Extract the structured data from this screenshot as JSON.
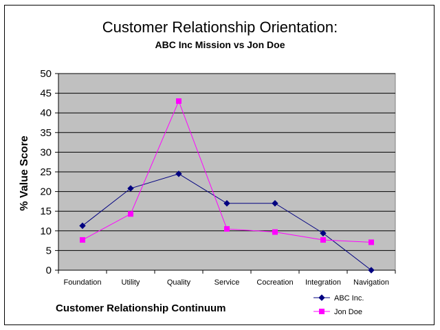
{
  "chart_data": {
    "type": "line",
    "title": "Customer Relationship Orientation:",
    "subtitle": "ABC Inc Mission vs Jon Doe",
    "xlabel": "Customer Relationship Continuum",
    "ylabel": "% Value Score",
    "categories": [
      "Foundation",
      "Utility",
      "Quality",
      "Service",
      "Cocreation",
      "Integration",
      "Navigation"
    ],
    "ylim": [
      0,
      50
    ],
    "yticks": [
      0,
      5,
      10,
      15,
      20,
      25,
      30,
      35,
      40,
      45,
      50
    ],
    "grid": true,
    "legend_position": "bottom-right",
    "series": [
      {
        "name": "ABC Inc.",
        "color": "#000080",
        "marker": "diamond",
        "values": [
          11.3,
          20.8,
          24.5,
          17,
          17,
          9.4,
          0
        ]
      },
      {
        "name": "Jon Doe",
        "color": "#ff00ff",
        "marker": "square",
        "values": [
          7.7,
          14.3,
          43,
          10.5,
          9.7,
          7.7,
          7.1
        ]
      }
    ]
  }
}
